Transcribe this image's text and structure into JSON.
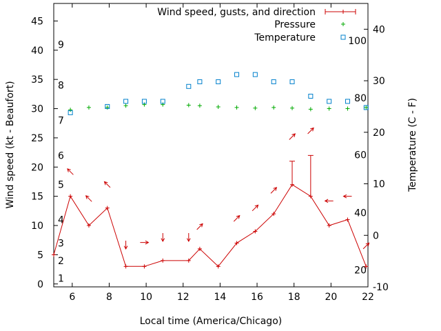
{
  "chart_data": {
    "type": "line",
    "xlabel": "Local time (America/Chicago)",
    "ylabel": "Wind speed (kt - Beaufort)",
    "y2label": "Temperature (C - F)",
    "xlim": [
      5,
      22
    ],
    "ylim": [
      -0.5,
      48
    ],
    "y2lim": [
      -10,
      45
    ],
    "x_ticks": [
      6,
      8,
      10,
      12,
      14,
      16,
      18,
      20,
      22
    ],
    "y_ticks": [
      0,
      5,
      10,
      15,
      20,
      25,
      30,
      35,
      40,
      45
    ],
    "y2_ticks": [
      -10,
      0,
      10,
      20,
      30,
      40
    ],
    "beaufort_labels": [
      {
        "label": "1",
        "kt": 1
      },
      {
        "label": "2",
        "kt": 4
      },
      {
        "label": "3",
        "kt": 7
      },
      {
        "label": "4",
        "kt": 11
      },
      {
        "label": "5",
        "kt": 17
      },
      {
        "label": "6",
        "kt": 22
      },
      {
        "label": "7",
        "kt": 28
      },
      {
        "label": "8",
        "kt": 34
      },
      {
        "label": "9",
        "kt": 41
      }
    ],
    "fahrenheit_labels": [
      {
        "label": "20",
        "celsius": -6.7
      },
      {
        "label": "40",
        "celsius": 4.4
      },
      {
        "label": "60",
        "celsius": 15.6
      },
      {
        "label": "80",
        "celsius": 26.7
      },
      {
        "label": "100",
        "celsius": 37.8
      }
    ],
    "legend": {
      "position": "top-right"
    },
    "series": [
      {
        "name": "Wind speed, gusts, and direction",
        "color": "#cc0000",
        "x": [
          5,
          5.9,
          6.9,
          7.9,
          8.9,
          9.9,
          10.9,
          12.3,
          12.9,
          13.9,
          14.9,
          15.9,
          16.9,
          17.9,
          18.9,
          19.9,
          20.9,
          21.9
        ],
        "y": [
          5,
          15,
          10,
          13,
          3,
          3,
          4,
          4,
          6,
          3,
          7,
          9,
          12,
          17,
          15,
          10,
          11,
          3
        ],
        "gusts": [
          {
            "x": 17.9,
            "y": 21
          },
          {
            "x": 18.9,
            "y": 22
          }
        ],
        "direction_arrows": [
          {
            "x": 5.9,
            "y": 19.2,
            "dir": "NW"
          },
          {
            "x": 6.9,
            "y": 14.6,
            "dir": "NW"
          },
          {
            "x": 7.9,
            "y": 17.0,
            "dir": "NW"
          },
          {
            "x": 8.9,
            "y": 6.7,
            "dir": "S"
          },
          {
            "x": 9.9,
            "y": 7.1,
            "dir": "E"
          },
          {
            "x": 10.9,
            "y": 8.0,
            "dir": "S"
          },
          {
            "x": 12.3,
            "y": 8.0,
            "dir": "S"
          },
          {
            "x": 12.9,
            "y": 9.8,
            "dir": "NE"
          },
          {
            "x": 14.9,
            "y": 11.2,
            "dir": "NE"
          },
          {
            "x": 15.9,
            "y": 13.0,
            "dir": "NE"
          },
          {
            "x": 16.9,
            "y": 16.0,
            "dir": "NE"
          },
          {
            "x": 17.9,
            "y": 25.2,
            "dir": "NE"
          },
          {
            "x": 18.9,
            "y": 26.2,
            "dir": "NE"
          },
          {
            "x": 19.9,
            "y": 14.2,
            "dir": "W"
          },
          {
            "x": 20.9,
            "y": 15.0,
            "dir": "W"
          },
          {
            "x": 21.9,
            "y": 6.5,
            "dir": "NE"
          }
        ]
      },
      {
        "name": "Pressure",
        "color": "#00aa00",
        "marker": "plus",
        "x": [
          5.9,
          6.9,
          7.9,
          8.9,
          9.9,
          10.9,
          12.3,
          12.9,
          13.9,
          14.9,
          15.9,
          16.9,
          17.9,
          18.9,
          19.9,
          20.9,
          21.9
        ],
        "y": [
          29.8,
          30.2,
          30.2,
          30.5,
          30.7,
          30.7,
          30.6,
          30.5,
          30.3,
          30.2,
          30.1,
          30.2,
          30.1,
          29.9,
          30.0,
          30.0,
          30.2
        ]
      },
      {
        "name": "Temperature",
        "color": "#0080cc",
        "marker": "square",
        "axis": "y2",
        "x": [
          5.9,
          7.9,
          8.9,
          9.9,
          10.9,
          12.3,
          12.9,
          13.9,
          14.9,
          15.9,
          16.9,
          17.9,
          18.9,
          19.9,
          20.9,
          21.9
        ],
        "y": [
          23.8,
          25.0,
          26.0,
          26.0,
          26.0,
          28.9,
          29.8,
          29.8,
          31.2,
          31.2,
          29.8,
          29.8,
          27.0,
          26.0,
          26.0,
          24.8
        ]
      }
    ]
  }
}
